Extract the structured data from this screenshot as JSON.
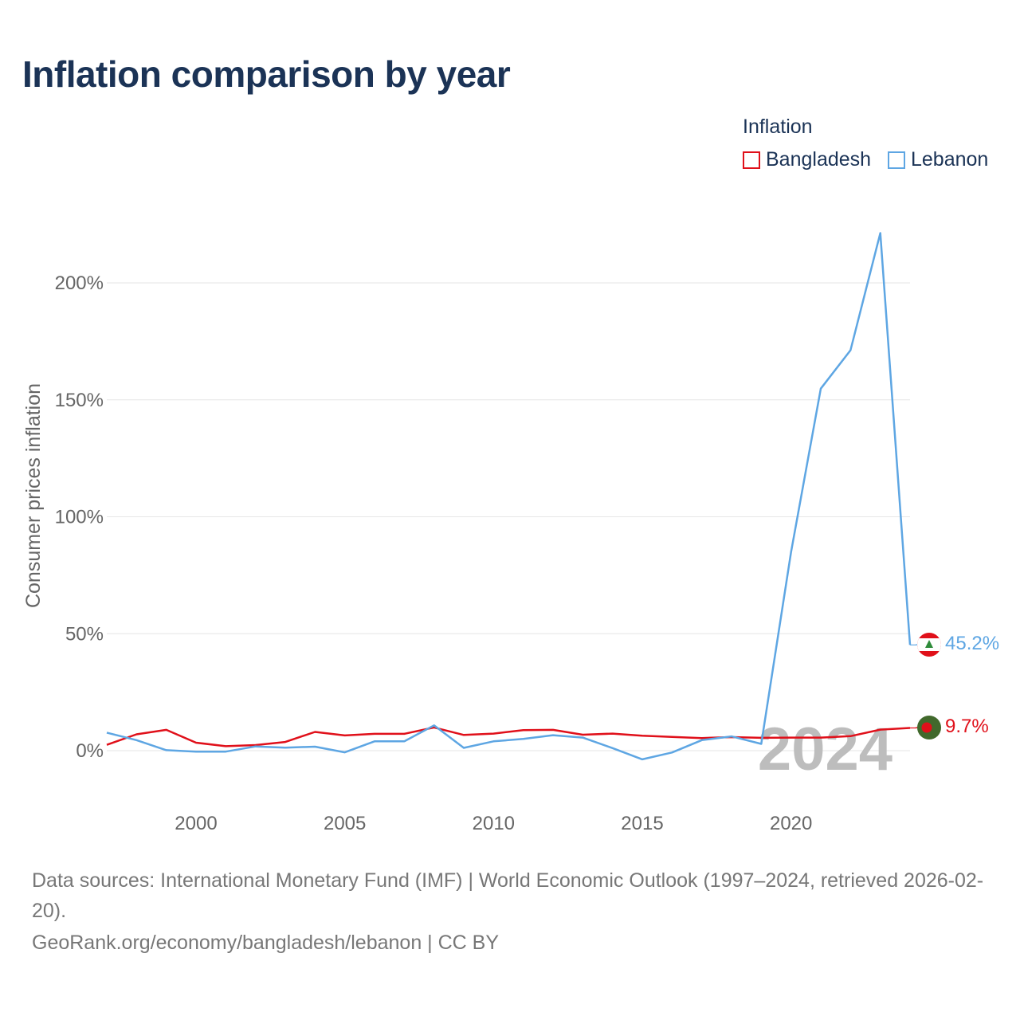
{
  "title": "Inflation comparison by year",
  "legend": {
    "title": "Inflation",
    "items": [
      {
        "label": "Bangladesh",
        "color": "#e0101a"
      },
      {
        "label": "Lebanon",
        "color": "#5ea6e3"
      }
    ]
  },
  "chart_data": {
    "type": "line",
    "title": "Inflation comparison by year",
    "xlabel": "",
    "ylabel": "Consumer prices inflation",
    "x": [
      1997,
      1998,
      1999,
      2000,
      2001,
      2002,
      2003,
      2004,
      2005,
      2006,
      2007,
      2008,
      2009,
      2010,
      2011,
      2012,
      2013,
      2014,
      2015,
      2016,
      2017,
      2018,
      2019,
      2020,
      2021,
      2022,
      2023,
      2024
    ],
    "xlim": [
      1997,
      2024
    ],
    "ylim": [
      -20,
      220
    ],
    "x_ticks": [
      2000,
      2005,
      2010,
      2015,
      2020
    ],
    "y_ticks": [
      0,
      50,
      100,
      150,
      200
    ],
    "y_tick_labels": [
      "0%",
      "50%",
      "100%",
      "150%",
      "200%"
    ],
    "highlight_year": "2024",
    "series": [
      {
        "name": "Bangladesh",
        "color": "#e0101a",
        "end_label": "9.7%",
        "values": [
          2.5,
          7.0,
          8.9,
          3.4,
          1.9,
          2.4,
          3.7,
          8.0,
          6.5,
          7.2,
          7.2,
          9.9,
          6.7,
          7.3,
          8.8,
          8.9,
          6.8,
          7.3,
          6.4,
          5.9,
          5.4,
          5.8,
          5.5,
          5.6,
          5.6,
          6.2,
          9.0,
          9.7
        ]
      },
      {
        "name": "Lebanon",
        "color": "#5ea6e3",
        "end_label": "45.2%",
        "values": [
          7.7,
          4.5,
          0.2,
          -0.4,
          -0.4,
          1.8,
          1.3,
          1.7,
          -0.7,
          4.0,
          4.0,
          10.8,
          1.2,
          4.0,
          5.0,
          6.6,
          5.6,
          1.1,
          -3.7,
          -0.8,
          4.5,
          6.1,
          2.9,
          84.9,
          154.8,
          171.2,
          221.3,
          45.2
        ]
      }
    ]
  },
  "footer": {
    "sources": "Data sources: International Monetary Fund (IMF) | World Economic Outlook (1997–2024, retrieved 2026-02-20).",
    "credit": "GeoRank.org/economy/bangladesh/lebanon | CC BY"
  }
}
